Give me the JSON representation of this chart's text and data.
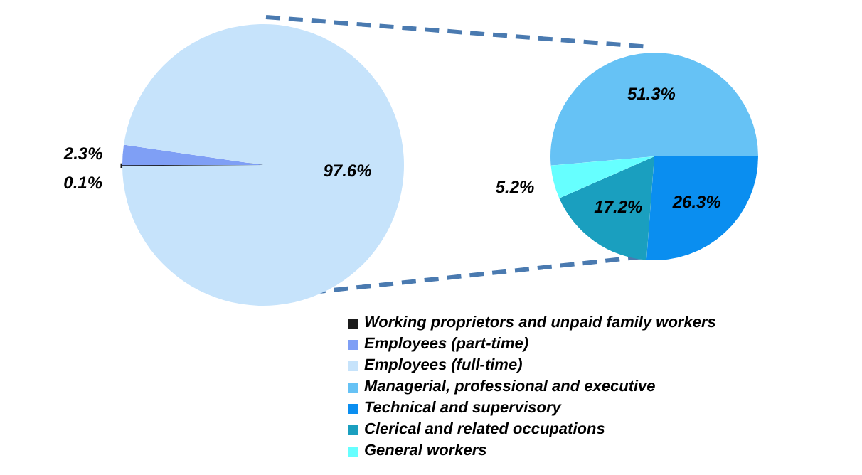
{
  "chart_data": [
    {
      "type": "pie",
      "categories": [
        "Working proprietors and unpaid family workers",
        "Employees (part-time)",
        "Employees (full-time)"
      ],
      "values": [
        0.1,
        2.3,
        97.6
      ],
      "colors": [
        "#1a1a1a",
        "#7f9ff5",
        "#c6e3fb"
      ],
      "value_labels": [
        "0.1%",
        "2.3%",
        "97.6%"
      ],
      "legend": "bottom"
    },
    {
      "type": "pie",
      "categories": [
        "Managerial, professional and executive",
        "Technical and supervisory",
        "Clerical and related occupations",
        "General workers"
      ],
      "values": [
        51.3,
        26.3,
        17.2,
        5.2
      ],
      "colors": [
        "#66c2f5",
        "#0a8ef0",
        "#1a9fbf",
        "#66ffff"
      ],
      "value_labels": [
        "51.3%",
        "26.3%",
        "17.2%",
        "5.2%"
      ],
      "legend": "bottom"
    }
  ]
}
